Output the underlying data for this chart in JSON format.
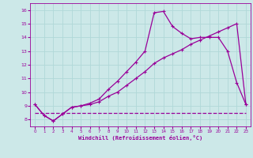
{
  "bg_color": "#cce8e8",
  "line_color": "#990099",
  "xlabel": "Windchill (Refroidissement éolien,°C)",
  "xlim": [
    -0.5,
    23.5
  ],
  "ylim": [
    7.5,
    16.5
  ],
  "yticks": [
    8,
    9,
    10,
    11,
    12,
    13,
    14,
    15,
    16
  ],
  "xticks": [
    0,
    1,
    2,
    3,
    4,
    5,
    6,
    7,
    8,
    9,
    10,
    11,
    12,
    13,
    14,
    15,
    16,
    17,
    18,
    19,
    20,
    21,
    22,
    23
  ],
  "series": [
    {
      "x": [
        0,
        1,
        2,
        3,
        4,
        5,
        6,
        7,
        8,
        9,
        10,
        11,
        12,
        13,
        14,
        15,
        16,
        17,
        18,
        19,
        20,
        21,
        22,
        23
      ],
      "y": [
        8.5,
        8.5,
        8.5,
        8.5,
        8.5,
        8.5,
        8.5,
        8.5,
        8.5,
        8.5,
        8.5,
        8.5,
        8.5,
        8.5,
        8.5,
        8.5,
        8.5,
        8.5,
        8.5,
        8.5,
        8.5,
        8.5,
        8.5,
        8.5
      ],
      "style": "--",
      "marker": null,
      "lw": 0.9,
      "ms": 0
    },
    {
      "x": [
        0,
        1,
        2,
        3,
        4,
        5,
        6,
        7,
        8,
        9,
        10,
        11,
        12,
        13,
        14,
        15,
        16,
        17,
        18,
        19,
        20,
        21,
        22,
        23
      ],
      "y": [
        9.1,
        8.3,
        7.9,
        8.4,
        8.9,
        9.0,
        9.1,
        9.3,
        9.7,
        10.0,
        10.5,
        11.0,
        11.5,
        12.1,
        12.5,
        12.8,
        13.1,
        13.5,
        13.8,
        14.1,
        14.4,
        14.7,
        15.0,
        9.1
      ],
      "style": "-",
      "marker": "+",
      "lw": 0.9,
      "ms": 3.5
    },
    {
      "x": [
        0,
        1,
        2,
        3,
        4,
        5,
        6,
        7,
        8,
        9,
        10,
        11,
        12,
        13,
        14,
        15,
        16,
        17,
        18,
        19,
        20,
        21,
        22,
        23
      ],
      "y": [
        9.1,
        8.3,
        7.9,
        8.4,
        8.9,
        9.0,
        9.2,
        9.5,
        10.2,
        10.8,
        11.5,
        12.2,
        13.0,
        15.8,
        15.9,
        14.8,
        14.3,
        13.9,
        14.0,
        14.0,
        14.0,
        13.0,
        10.7,
        9.1
      ],
      "style": "-",
      "marker": "+",
      "lw": 0.9,
      "ms": 3.5
    }
  ]
}
